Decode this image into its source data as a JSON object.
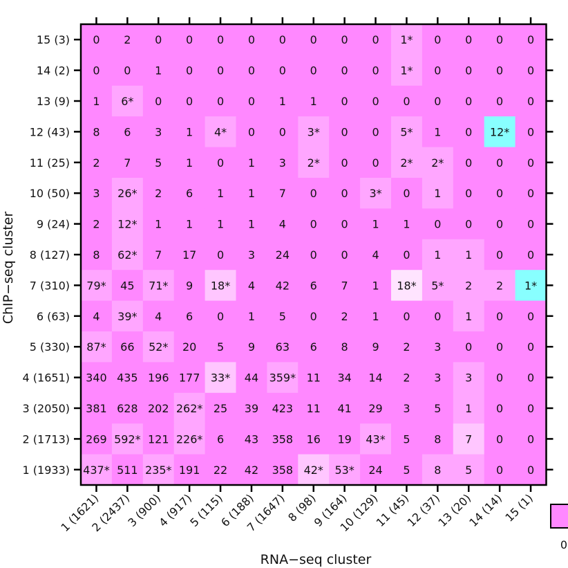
{
  "chart_data": {
    "type": "heatmap",
    "xlabel": "RNA−seq cluster",
    "ylabel": "ChIP−seq cluster",
    "x_categories": [
      "1 (1621)",
      "2 (2437)",
      "3 (900)",
      "4 (917)",
      "5 (115)",
      "6 (188)",
      "7 (1647)",
      "8 (98)",
      "9 (164)",
      "10 (129)",
      "11 (45)",
      "12 (37)",
      "13 (20)",
      "14 (14)",
      "15 (1)"
    ],
    "y_categories_top_to_bottom": [
      "15 (3)",
      "14 (2)",
      "13 (9)",
      "12 (43)",
      "11 (25)",
      "10 (50)",
      "9 (24)",
      "8 (127)",
      "7 (310)",
      "6 (63)",
      "5 (330)",
      "4 (1651)",
      "3 (2050)",
      "2 (1713)",
      "1 (1933)"
    ],
    "cells_top_to_bottom": [
      [
        "0",
        "2",
        "0",
        "0",
        "0",
        "0",
        "0",
        "0",
        "0",
        "0",
        "1*",
        "0",
        "0",
        "0",
        "0"
      ],
      [
        "0",
        "0",
        "1",
        "0",
        "0",
        "0",
        "0",
        "0",
        "0",
        "0",
        "1*",
        "0",
        "0",
        "0",
        "0"
      ],
      [
        "1",
        "6*",
        "0",
        "0",
        "0",
        "0",
        "1",
        "1",
        "0",
        "0",
        "0",
        "0",
        "0",
        "0",
        "0"
      ],
      [
        "8",
        "6",
        "3",
        "1",
        "4*",
        "0",
        "0",
        "3*",
        "0",
        "0",
        "5*",
        "1",
        "0",
        "12*",
        "0"
      ],
      [
        "2",
        "7",
        "5",
        "1",
        "0",
        "1",
        "3",
        "2*",
        "0",
        "0",
        "2*",
        "2*",
        "0",
        "0",
        "0"
      ],
      [
        "3",
        "26*",
        "2",
        "6",
        "1",
        "1",
        "7",
        "0",
        "0",
        "3*",
        "0",
        "1",
        "0",
        "0",
        "0"
      ],
      [
        "2",
        "12*",
        "1",
        "1",
        "1",
        "1",
        "4",
        "0",
        "0",
        "1",
        "1",
        "0",
        "0",
        "0",
        "0"
      ],
      [
        "8",
        "62*",
        "7",
        "17",
        "0",
        "3",
        "24",
        "0",
        "0",
        "4",
        "0",
        "1",
        "1",
        "0",
        "0"
      ],
      [
        "79*",
        "45",
        "71*",
        "9",
        "18*",
        "4",
        "42",
        "6",
        "7",
        "1",
        "18*",
        "5*",
        "2",
        "2",
        "1*"
      ],
      [
        "4",
        "39*",
        "4",
        "6",
        "0",
        "1",
        "5",
        "0",
        "2",
        "1",
        "0",
        "0",
        "1",
        "0",
        "0"
      ],
      [
        "87*",
        "66",
        "52*",
        "20",
        "5",
        "9",
        "63",
        "6",
        "8",
        "9",
        "2",
        "3",
        "0",
        "0",
        "0"
      ],
      [
        "340",
        "435",
        "196",
        "177",
        "33*",
        "44",
        "359*",
        "11",
        "34",
        "14",
        "2",
        "3",
        "3",
        "0",
        "0"
      ],
      [
        "381",
        "628",
        "202",
        "262*",
        "25",
        "39",
        "423",
        "11",
        "41",
        "29",
        "3",
        "5",
        "1",
        "0",
        "0"
      ],
      [
        "269",
        "592*",
        "121",
        "226*",
        "6",
        "43",
        "358",
        "16",
        "19",
        "43*",
        "5",
        "8",
        "7",
        "0",
        "0"
      ],
      [
        "437*",
        "511",
        "235*",
        "191",
        "22",
        "42",
        "358",
        "42*",
        "53*",
        "24",
        "5",
        "8",
        "5",
        "0",
        "0"
      ]
    ],
    "shade_levels_top_to_bottom": [
      [
        0,
        0,
        0,
        0,
        0,
        0,
        0,
        0,
        0,
        0,
        1,
        0,
        0,
        0,
        0
      ],
      [
        0,
        0,
        0,
        0,
        0,
        0,
        0,
        0,
        0,
        0,
        1,
        0,
        0,
        0,
        0
      ],
      [
        0,
        1,
        0,
        0,
        0,
        0,
        0,
        0,
        0,
        0,
        0,
        0,
        0,
        0,
        0
      ],
      [
        0,
        0,
        0,
        0,
        1,
        0,
        0,
        1,
        0,
        0,
        1,
        0,
        0,
        -1,
        0
      ],
      [
        0,
        0,
        0,
        0,
        0,
        0,
        0,
        1,
        0,
        0,
        1,
        1,
        0,
        0,
        0
      ],
      [
        0,
        1,
        0,
        0,
        0,
        0,
        0,
        0,
        0,
        1,
        0,
        1,
        0,
        0,
        0
      ],
      [
        0,
        1,
        0,
        0,
        0,
        0,
        0,
        0,
        0,
        0,
        0,
        0,
        0,
        0,
        0
      ],
      [
        0,
        1,
        0,
        0,
        0,
        0,
        0,
        0,
        0,
        0,
        0,
        1,
        1,
        0,
        0
      ],
      [
        1,
        0,
        1,
        0,
        2,
        0,
        0,
        0,
        0,
        0,
        3,
        1,
        1,
        1,
        -1
      ],
      [
        0,
        1,
        0,
        0,
        0,
        0,
        0,
        0,
        0,
        0,
        0,
        0,
        1,
        0,
        0
      ],
      [
        1,
        0,
        1,
        0,
        0,
        0,
        0,
        0,
        0,
        0,
        0,
        0,
        0,
        0,
        0
      ],
      [
        0,
        0,
        0,
        0,
        2,
        0,
        1,
        0,
        0,
        0,
        0,
        0,
        1,
        0,
        0
      ],
      [
        0,
        0,
        0,
        1,
        0,
        0,
        0,
        0,
        0,
        0,
        0,
        0,
        1,
        0,
        0
      ],
      [
        0,
        1,
        0,
        1,
        0,
        0,
        0,
        0,
        0,
        1,
        0,
        0,
        2,
        0,
        0
      ],
      [
        1,
        0,
        1,
        0,
        0,
        0,
        0,
        2,
        1,
        0,
        0,
        1,
        1,
        0,
        0
      ]
    ],
    "colorscale_label": "0",
    "colors": {
      "base": "#ff88ff",
      "level1": "#ffa6ff",
      "level2": "#ffc6ff",
      "level3": "#ffe4ff",
      "depleted": "#88ffff",
      "text": "#111111"
    },
    "grid": false
  }
}
